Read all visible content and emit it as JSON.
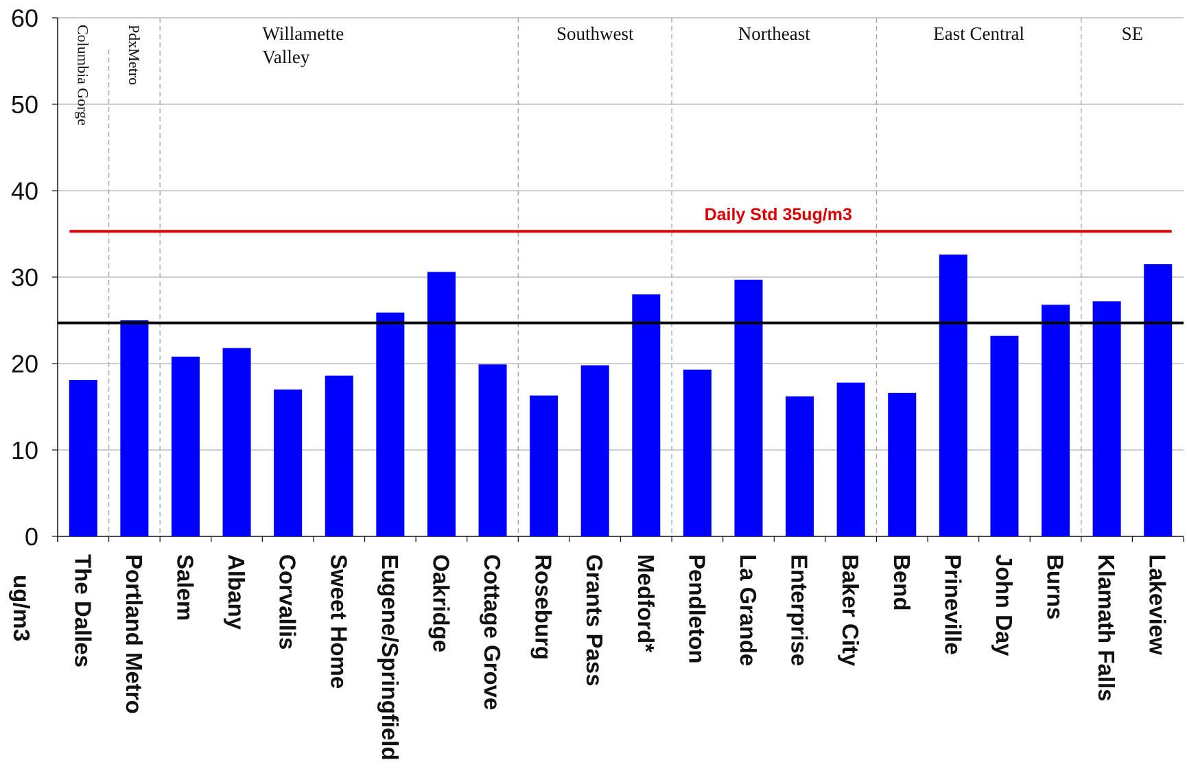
{
  "chart_data": {
    "type": "bar",
    "ylabel": "ug/m3",
    "ylim": [
      0,
      60
    ],
    "yticks": [
      0,
      10,
      20,
      30,
      40,
      50,
      60
    ],
    "grid": true,
    "categories": [
      "The Dalles",
      "Portland Metro",
      "Salem",
      "Albany",
      "Corvallis",
      "Sweet Home",
      "Eugene/Springfield",
      "Oakridge",
      "Cottage Grove",
      "Roseburg",
      "Grants Pass",
      "Medford*",
      "Pendleton",
      "La Grande",
      "Enterprise",
      "Baker City",
      "Bend",
      "Prineville",
      "John Day",
      "Burns",
      "Klamath Falls",
      "Lakeview"
    ],
    "values": [
      18.1,
      25.0,
      20.8,
      21.8,
      17.0,
      18.6,
      25.9,
      30.6,
      19.9,
      16.3,
      19.8,
      28.0,
      19.3,
      29.7,
      16.2,
      17.8,
      16.6,
      32.6,
      23.2,
      26.8,
      27.2,
      31.5
    ],
    "bar_color": "#0000ff",
    "reference_lines": [
      {
        "value": 35.3,
        "label": "Daily Std 35ug/m3",
        "color": "#dd0000"
      },
      {
        "value": 24.7,
        "label": "",
        "color": "#000000"
      }
    ],
    "regions": [
      {
        "label": "Columbia Gorge",
        "start": 0,
        "count": 1,
        "vertical": true
      },
      {
        "label": "PdxMetro",
        "start": 1,
        "count": 1,
        "vertical": true
      },
      {
        "label": "Willamette\nValley",
        "start": 2,
        "count": 7,
        "vertical": false
      },
      {
        "label": "Southwest",
        "start": 9,
        "count": 3,
        "vertical": false
      },
      {
        "label": "Northeast",
        "start": 12,
        "count": 4,
        "vertical": false
      },
      {
        "label": "East Central",
        "start": 16,
        "count": 4,
        "vertical": false
      },
      {
        "label": "SE",
        "start": 20,
        "count": 2,
        "vertical": false
      }
    ]
  }
}
